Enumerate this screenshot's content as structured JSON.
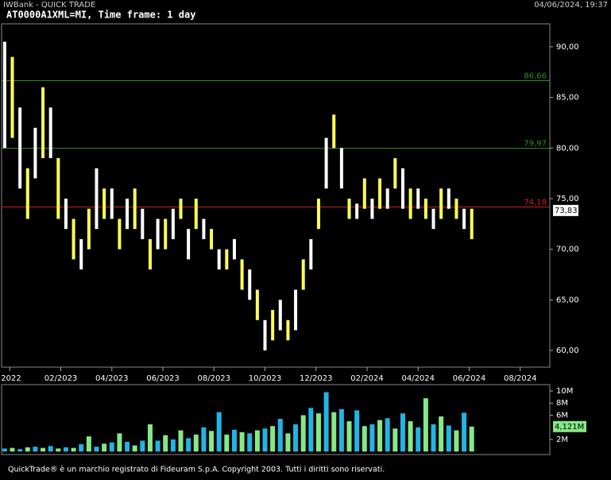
{
  "header": {
    "app": "IWBank - QUICK TRADE",
    "timestamp": "04/06/2024, 19:37"
  },
  "chart_data": [
    {
      "type": "range-bar",
      "title": "AT0000A1XML=MI, Time frame: 1 day",
      "x": [
        -1.2,
        -0.9,
        -0.6,
        -0.3,
        0,
        0.3,
        0.6,
        0.9,
        1.2,
        1.5,
        1.8,
        2.1,
        2.4,
        2.7,
        3,
        3.3,
        3.6,
        3.9,
        4.2,
        4.5,
        4.8,
        5.1,
        5.4,
        5.7,
        6,
        6.3,
        6.6,
        6.9,
        7.2,
        7.5,
        7.8,
        8.1,
        8.4,
        8.7,
        9,
        9.3,
        9.6,
        9.9,
        10.2,
        10.5,
        10.8,
        11.1,
        11.4,
        11.7,
        12,
        12.3,
        12.6,
        12.9,
        13.2,
        13.5,
        13.8,
        14.1,
        14.4,
        14.7,
        15,
        15.3,
        15.6,
        15.9,
        16.2,
        16.5,
        16.8,
        17.1
      ],
      "low": [
        80,
        81,
        76,
        73,
        77,
        79,
        79,
        73,
        72,
        69,
        68,
        70,
        72,
        73,
        73,
        70,
        72,
        72,
        71,
        68,
        70,
        70,
        71,
        73,
        69,
        72,
        71,
        70,
        68,
        68,
        69,
        66,
        65,
        63,
        60,
        61,
        62,
        61,
        62,
        66,
        68,
        72,
        76,
        80,
        76,
        73,
        73,
        74,
        73,
        74,
        74,
        76,
        74,
        73,
        74,
        73,
        72,
        73,
        74,
        73,
        72,
        71
      ],
      "high": [
        90.5,
        89,
        84,
        78,
        82,
        86,
        84,
        79,
        75,
        73,
        71,
        74,
        78,
        76,
        76,
        73,
        75,
        76,
        74,
        71,
        73,
        73,
        74,
        75,
        72,
        75,
        73,
        72,
        70,
        70,
        71,
        69,
        68,
        66,
        63,
        64,
        65,
        63,
        66,
        69,
        71,
        75,
        81,
        83.3,
        80,
        75,
        74.5,
        77,
        75,
        77,
        76,
        79,
        78,
        76,
        76,
        75,
        74,
        76,
        76,
        75,
        74,
        74
      ],
      "colors": [
        "#ffffff",
        "#ffff55"
      ],
      "xlim": [
        -1.32,
        20.16
      ],
      "xticks": [
        {
          "value": -1,
          "label": "2022"
        },
        {
          "value": 1,
          "label": "02/2023"
        },
        {
          "value": 3,
          "label": "04/2023"
        },
        {
          "value": 5,
          "label": "06/2023"
        },
        {
          "value": 7,
          "label": "08/2023"
        },
        {
          "value": 9,
          "label": "10/2023"
        },
        {
          "value": 11,
          "label": "12/2023"
        },
        {
          "value": 13,
          "label": "02/2024"
        },
        {
          "value": 15,
          "label": "04/2024"
        },
        {
          "value": 17,
          "label": "06/2024"
        },
        {
          "value": 19,
          "label": "08/2024"
        }
      ],
      "ylim": [
        58.35,
        92.27
      ],
      "yticks": [
        {
          "value": 60,
          "label": "60,00"
        },
        {
          "value": 65,
          "label": "65,00"
        },
        {
          "value": 70,
          "label": "70,00"
        },
        {
          "value": 75,
          "label": "75,00"
        },
        {
          "value": 80,
          "label": "80,00"
        },
        {
          "value": 85,
          "label": "85,00"
        },
        {
          "value": 90,
          "label": "90,00"
        }
      ],
      "reference_lines": [
        {
          "value": 86.66,
          "label": "86,66",
          "color": "#2e8b2e"
        },
        {
          "value": 79.97,
          "label": "79,97",
          "color": "#2e8b2e"
        },
        {
          "value": 74.18,
          "label": "74,18",
          "color": "#d02020"
        }
      ],
      "last_value": {
        "value": 73.83,
        "label": "73,83"
      }
    },
    {
      "type": "bar",
      "values": [
        0.5,
        0.6,
        0.4,
        0.7,
        0.8,
        0.6,
        0.9,
        0.5,
        0.7,
        0.6,
        1.2,
        2.5,
        0.8,
        1.3,
        1.5,
        3.0,
        1.6,
        1.0,
        1.8,
        4.5,
        1.8,
        2.7,
        2.0,
        3.5,
        2.2,
        2.8,
        4.0,
        3.4,
        6.5,
        2.8,
        3.6,
        3.2,
        3.0,
        3.5,
        3.8,
        4.2,
        5.4,
        3.0,
        4.5,
        6.0,
        7.2,
        6.3,
        9.8,
        6.5,
        7.0,
        5.0,
        6.8,
        4.2,
        4.5,
        5.2,
        5.5,
        3.8,
        6.3,
        5.0,
        4.0,
        8.8,
        4.5,
        5.8,
        4.3,
        3.5,
        6.4,
        4.121
      ],
      "colors": [
        "#22b4e6",
        "#86e886"
      ],
      "ylim": [
        -0.5,
        11.05
      ],
      "yticks": [
        {
          "value": 2,
          "label": "2M"
        },
        {
          "value": 6,
          "label": "6M"
        },
        {
          "value": 8,
          "label": "8M"
        },
        {
          "value": 10,
          "label": "10M"
        }
      ],
      "last_value": {
        "value": 4.121,
        "label": "4,121M"
      }
    }
  ],
  "footer": "QuickTrade® è un marchio registrato di Fideuram S.p.A. Copyright 2003. Tutti i diritti sono riservati."
}
